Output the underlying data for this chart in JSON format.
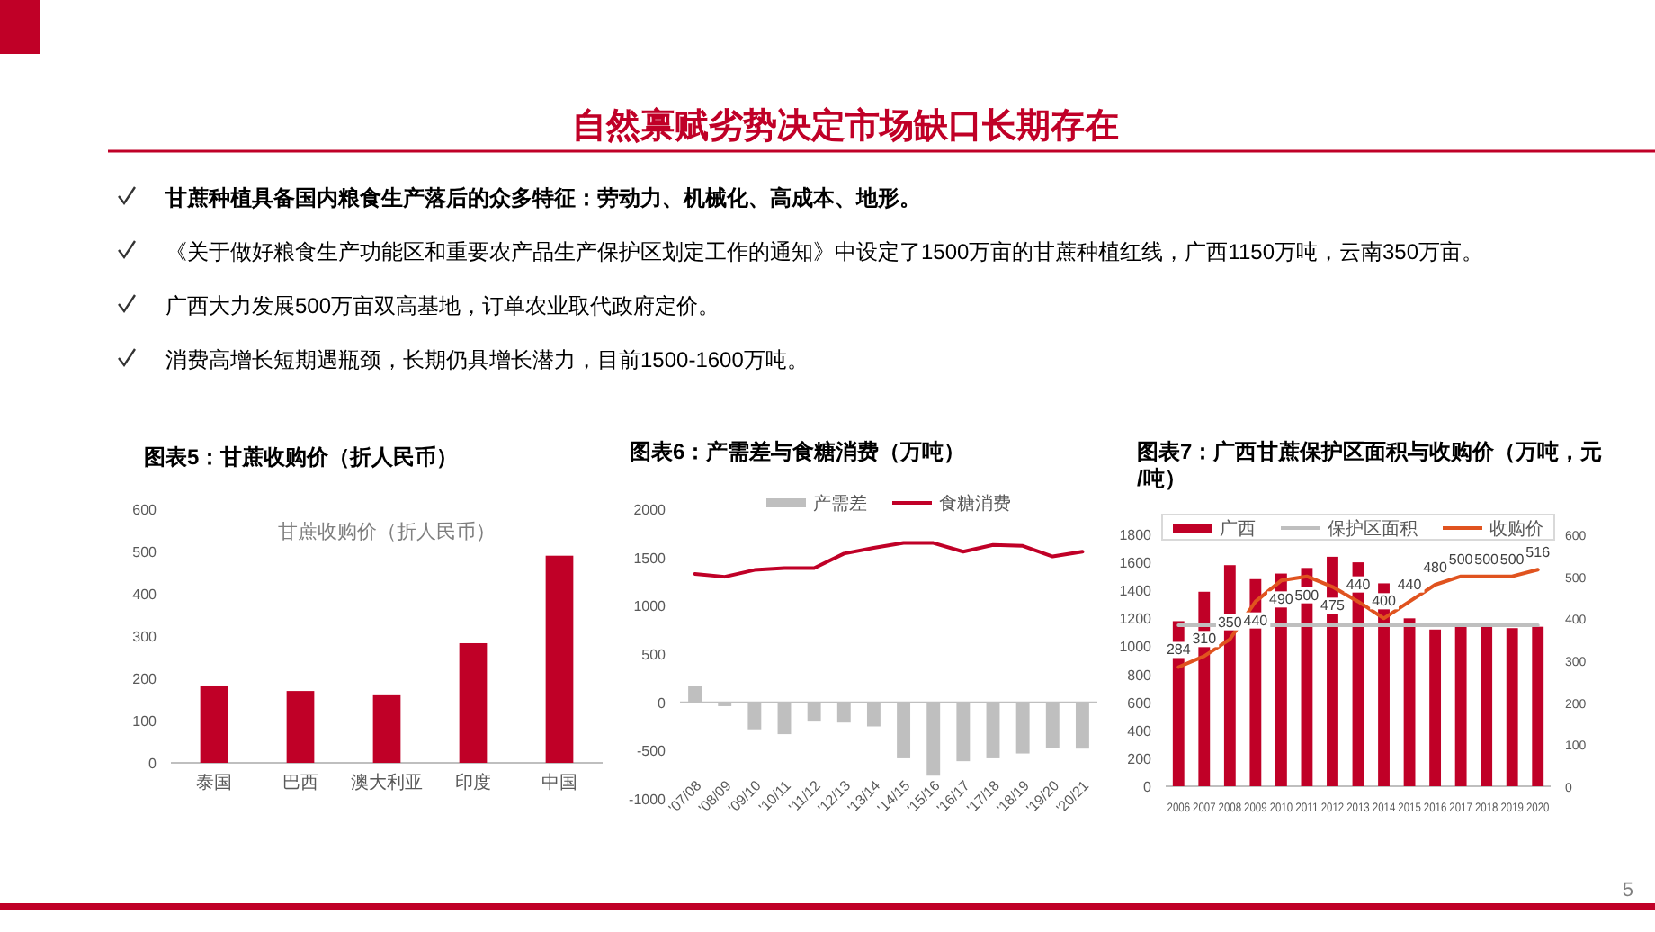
{
  "chart_data": [
    {
      "type": "other",
      "title": "自然禀赋劣势决定市场缺口长期存在",
      "annotations": [
        "甘蔗种植具备国内粮食生产落后的众多特征：劳动力、机械化、高成本、地形。",
        "《关于做好粮食生产功能区和重要农产品生产保护区划定工作的通知》中设定了1500万亩的甘蔗种植红线，广西1150万吨，云南350万亩。",
        "广西大力发展500万亩双高基地，订单农业取代政府定价。",
        "消费高增长短期遇瓶颈，长期仍具增长潜力，目前1500-1600万吨。",
        "5"
      ]
    },
    {
      "type": "bar",
      "title": "图表5：甘蔗收购价（折人民币）",
      "subtitle": "甘蔗收购价（折人民币）",
      "categories": [
        "泰国",
        "巴西",
        "澳大利亚",
        "印度",
        "中国"
      ],
      "values": [
        183,
        170,
        162,
        283,
        490
      ],
      "color": "#c00027",
      "ylim": [
        0,
        600
      ],
      "yticks": [
        0,
        100,
        200,
        300,
        400,
        500,
        600
      ]
    },
    {
      "type": "bar",
      "title": "图表6：产需差与食糖消费（万吨）",
      "categories": [
        "'07/08",
        "'08/09",
        "'09/10",
        "'10/11",
        "'11/12",
        "'12/13",
        "'13/14",
        "'14/15",
        "'15/16",
        "'16/17",
        "'17/18",
        "'18/19",
        "'19/20",
        "'20/21"
      ],
      "legend": "top",
      "ylim": [
        -1000,
        2000
      ],
      "yticks": [
        -1000,
        -500,
        0,
        500,
        1000,
        1500,
        2000
      ],
      "series": [
        {
          "name": "产需差",
          "type": "bar",
          "color": "#bfbfbf",
          "values": [
            170,
            -40,
            -280,
            -330,
            -200,
            -210,
            -250,
            -580,
            -760,
            -610,
            -580,
            -530,
            -470,
            -480
          ]
        },
        {
          "name": "食糖消费",
          "type": "line",
          "color": "#c00027",
          "values": [
            1330,
            1300,
            1370,
            1390,
            1390,
            1540,
            1600,
            1650,
            1650,
            1560,
            1630,
            1620,
            1510,
            1560
          ]
        }
      ]
    },
    {
      "type": "bar",
      "title": "图表7：广西甘蔗保护区面积与收购价（万吨，元/吨）",
      "categories": [
        "2006",
        "2007",
        "2008",
        "2009",
        "2010",
        "2011",
        "2012",
        "2013",
        "2014",
        "2015",
        "2016",
        "2017",
        "2018",
        "2019",
        "2020"
      ],
      "legend": "top",
      "ylim": [
        0,
        1800
      ],
      "yticks": [
        0,
        200,
        400,
        600,
        800,
        1000,
        1200,
        1400,
        1600,
        1800
      ],
      "y2lim": [
        0,
        600
      ],
      "y2ticks": [
        0,
        100,
        200,
        300,
        400,
        500,
        600
      ],
      "series": [
        {
          "name": "广西",
          "type": "bar",
          "color": "#c00027",
          "values": [
            1180,
            1390,
            1580,
            1480,
            1520,
            1560,
            1640,
            1600,
            1450,
            1200,
            1120,
            1140,
            1140,
            1130,
            1140
          ]
        },
        {
          "name": "保护区面积",
          "type": "line",
          "color": "#bfbfbf",
          "values": [
            1150,
            1150,
            1150,
            1150,
            1150,
            1150,
            1150,
            1150,
            1150,
            1150,
            1150,
            1150,
            1150,
            1150,
            1150
          ]
        },
        {
          "name": "收购价",
          "type": "line",
          "color": "#e0531f",
          "axis": "y2",
          "values": [
            284,
            310,
            350,
            440,
            490,
            500,
            475,
            440,
            400,
            440,
            480,
            500,
            500,
            500,
            516
          ],
          "value_labels": [
            "284",
            "310",
            "350",
            "440",
            "490",
            "500",
            "475",
            "440",
            "400",
            "440",
            "480",
            "500",
            "500",
            "500",
            "516"
          ]
        }
      ]
    }
  ]
}
